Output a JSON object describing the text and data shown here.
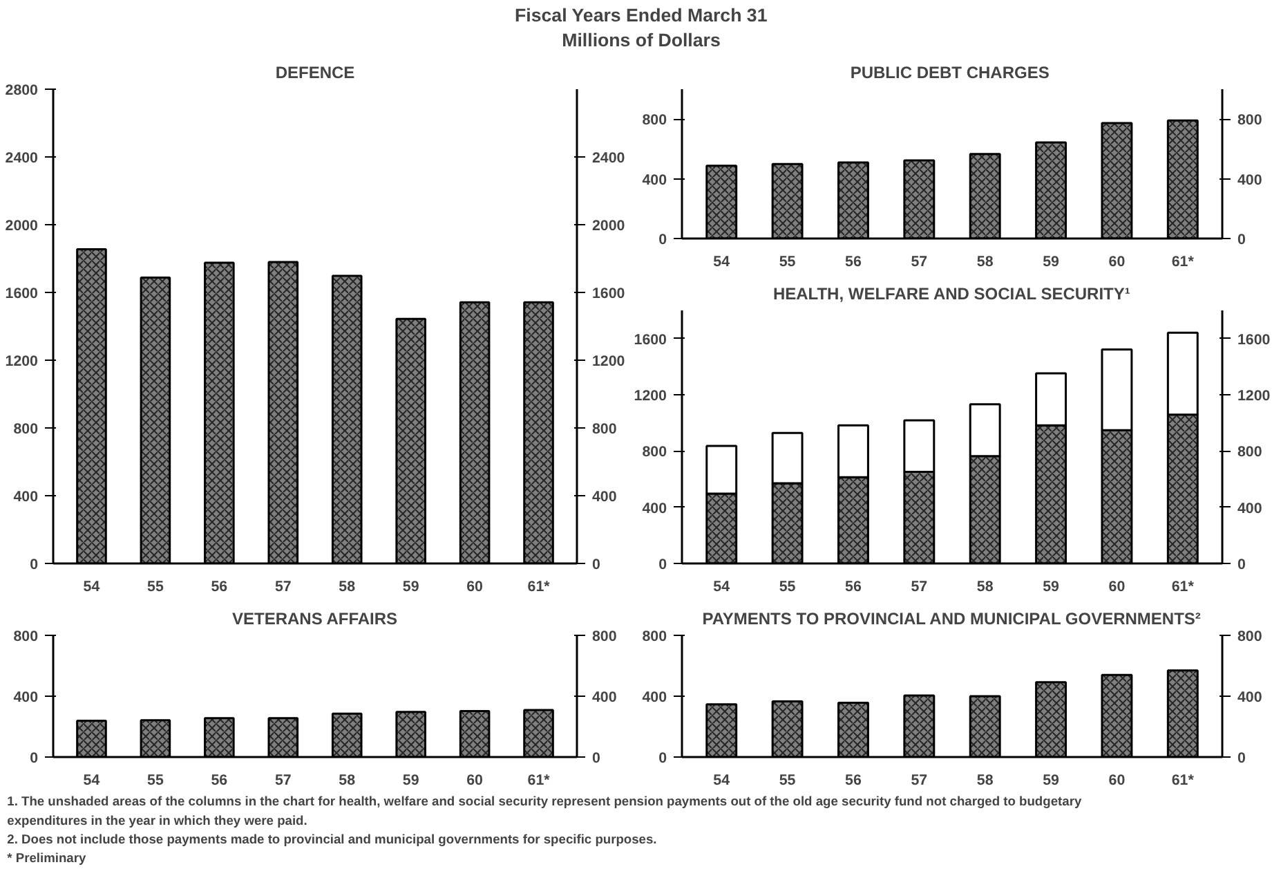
{
  "chart_data": [
    {
      "type": "other",
      "title": "Fiscal Years Ended March 31",
      "subtitle": "Millions of Dollars",
      "annotations": [
        "1. The unshaded areas of the columns in the chart for health, welfare and social security represent pension payments out of the old age security  fund not charged to budgetary expenditures in the year in which they were paid.",
        "2. Does not include those payments made to provincial and municipal governments for  specific purposes.",
        "* Preliminary"
      ]
    },
    {
      "type": "bar",
      "title": "DEFENCE",
      "categories": [
        "54",
        "55",
        "56",
        "57",
        "58",
        "59",
        "60",
        "61*"
      ],
      "values": [
        1855,
        1688,
        1776,
        1780,
        1698,
        1444,
        1542,
        1542
      ],
      "color": "#7f7f7f",
      "ylim": [
        0,
        2800
      ],
      "yticks": [
        0,
        400,
        800,
        1200,
        1600,
        2000,
        2400,
        2800
      ],
      "y2lim": [
        0,
        2800
      ],
      "y2ticks": [
        0,
        400,
        800,
        1200,
        1600,
        2000,
        2400
      ]
    },
    {
      "type": "bar",
      "title": "PUBLIC DEBT  CHARGES",
      "categories": [
        "54",
        "55",
        "56",
        "57",
        "58",
        "59",
        "60",
        "61*"
      ],
      "values": [
        487,
        499,
        509,
        523,
        566,
        643,
        773,
        790
      ],
      "color": "#7f7f7f",
      "ylim": [
        0,
        1000
      ],
      "yticks": [
        0,
        400,
        800
      ],
      "y2lim": [
        0,
        1000
      ],
      "y2ticks": [
        0,
        400,
        800
      ]
    },
    {
      "type": "bar",
      "title": "HEALTH, WELFARE AND SOCIAL SECURITY¹",
      "categories": [
        "54",
        "55",
        "56",
        "57",
        "58",
        "59",
        "60",
        "61*"
      ],
      "stacked": true,
      "series": [
        {
          "color": "#7f7f7f",
          "values": [
            497,
            570,
            613,
            652,
            764,
            982,
            948,
            1059
          ]
        },
        {
          "color": "#ffffff",
          "values": [
            339,
            358,
            369,
            366,
            368,
            371,
            574,
            582
          ]
        }
      ],
      "ylim": [
        0,
        1800
      ],
      "yticks": [
        0,
        400,
        800,
        1200,
        1600
      ],
      "y2lim": [
        0,
        1800
      ],
      "y2ticks": [
        0,
        400,
        800,
        1200,
        1600
      ]
    },
    {
      "type": "bar",
      "title": "VETERANS AFFAIRS",
      "categories": [
        "54",
        "55",
        "56",
        "57",
        "58",
        "59",
        "60",
        "61*"
      ],
      "values": [
        239,
        242,
        256,
        256,
        285,
        297,
        302,
        309
      ],
      "color": "#7f7f7f",
      "ylim": [
        0,
        800
      ],
      "yticks": [
        0,
        400,
        800
      ],
      "y2lim": [
        0,
        800
      ],
      "y2ticks": [
        0,
        400,
        800
      ]
    },
    {
      "type": "bar",
      "title": "PAYMENTS TO PROVINCIAL AND MUNICIPAL GOVERNMENTS²",
      "categories": [
        "54",
        "55",
        "56",
        "57",
        "58",
        "59",
        "60",
        "61*"
      ],
      "values": [
        347,
        366,
        357,
        405,
        400,
        492,
        540,
        569
      ],
      "color": "#7f7f7f",
      "ylim": [
        0,
        800
      ],
      "yticks": [
        0,
        400,
        800
      ],
      "y2lim": [
        0,
        800
      ],
      "y2ticks": [
        0,
        400,
        800
      ]
    }
  ]
}
